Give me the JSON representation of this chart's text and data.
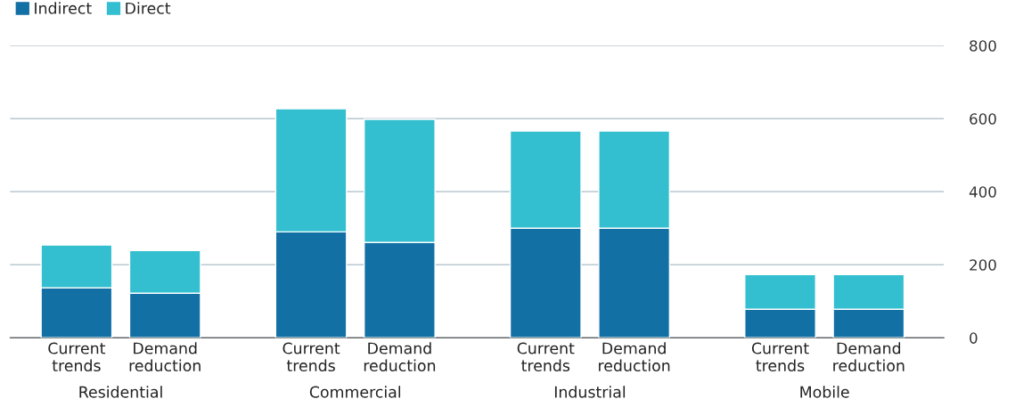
{
  "chart_data": {
    "type": "bar",
    "stacked": true,
    "categories": [
      "Current\ntrends",
      "Demand\nreduction",
      "Current\ntrends",
      "Demand\nreduction",
      "Current\ntrends",
      "Demand\nreduction",
      "Current\ntrends",
      "Demand\nreduction"
    ],
    "series": [
      {
        "name": "Indirect",
        "color": "#1270a5",
        "values": [
          137,
          122,
          290,
          261,
          300,
          300,
          78,
          78
        ]
      },
      {
        "name": "Direct",
        "color": "#33bfd0",
        "values": [
          117,
          117,
          337,
          337,
          266,
          266,
          95,
          95
        ]
      }
    ],
    "annotations": [
      "Residential",
      "Commercial",
      "Industrial",
      "Mobile"
    ],
    "ylim": [
      0,
      800
    ],
    "yticks": [
      0,
      200,
      400,
      600,
      800
    ],
    "grid": "y",
    "legend": "top left"
  }
}
